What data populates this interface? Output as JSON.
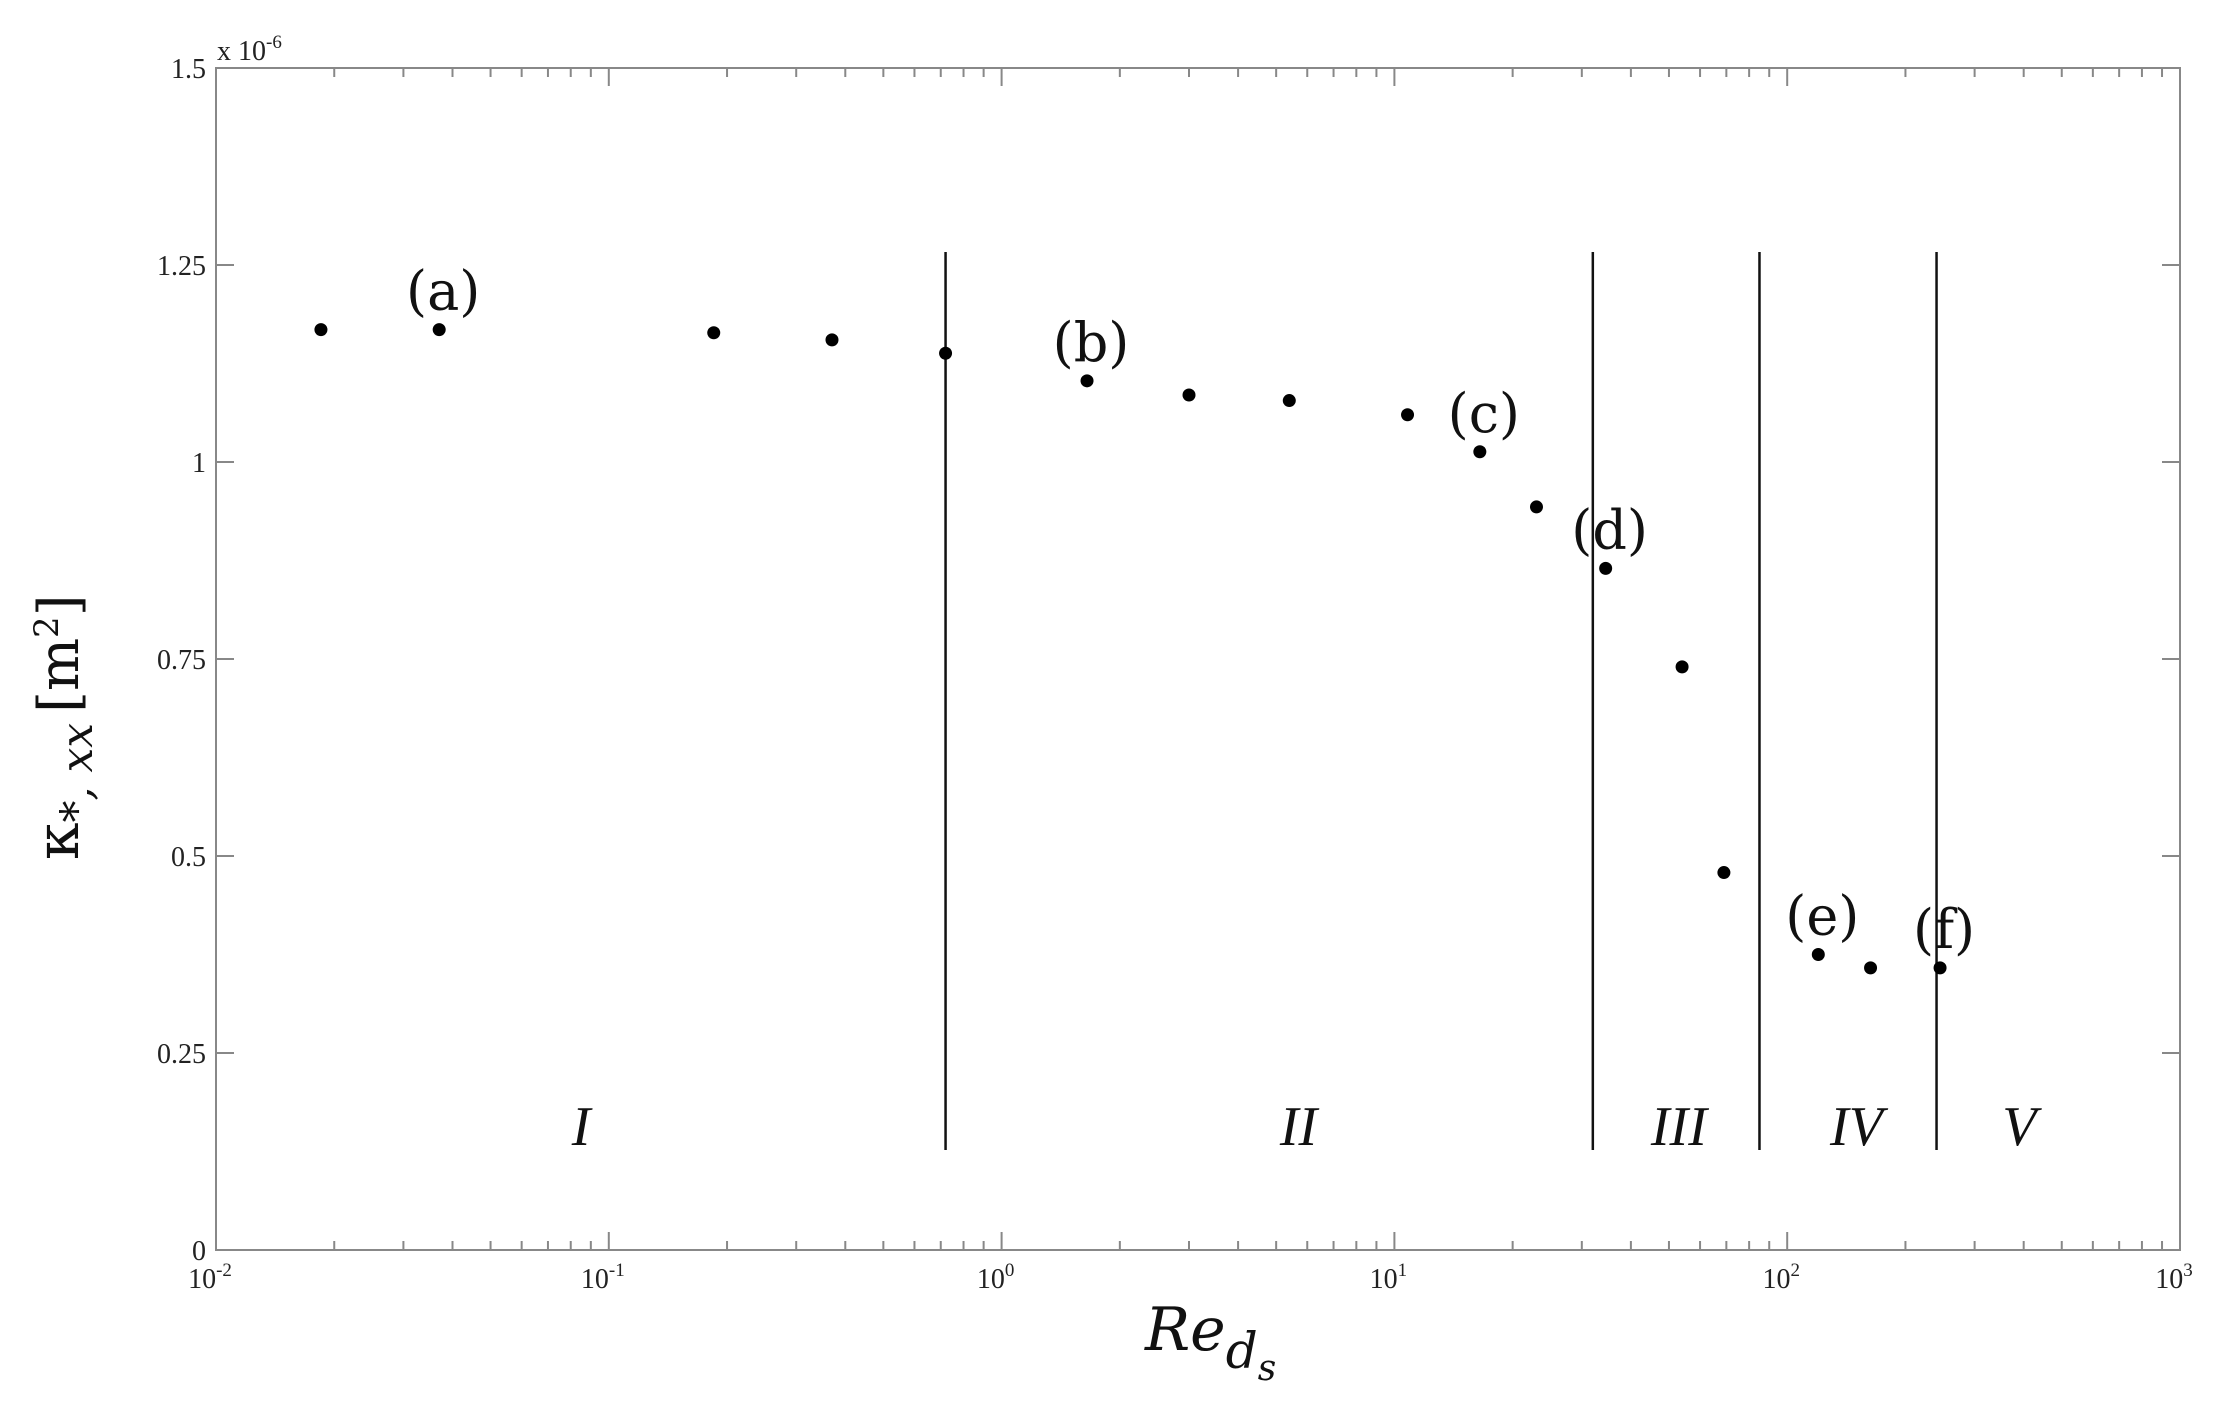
{
  "chart_data": {
    "type": "scatter",
    "title": "",
    "x_scale": "log",
    "xlim": [
      0.01,
      1000
    ],
    "ylim": [
      0,
      1.5
    ],
    "y_multiplier": "x 10",
    "y_multiplier_exp": "-6",
    "grid": false,
    "xlabel": {
      "base": "Re",
      "sub": "d",
      "subsub": "s"
    },
    "ylabel": {
      "symbol": "κ",
      "sub": "*, xx",
      "unit": "[m",
      "unit_exp": "2",
      "unit_close": "]"
    },
    "x_ticks": [
      {
        "value": 0.01,
        "base": "10",
        "exp": "-2"
      },
      {
        "value": 0.1,
        "base": "10",
        "exp": "-1"
      },
      {
        "value": 1,
        "base": "10",
        "exp": "0"
      },
      {
        "value": 10,
        "base": "10",
        "exp": "1"
      },
      {
        "value": 100,
        "base": "10",
        "exp": "2"
      },
      {
        "value": 1000,
        "base": "10",
        "exp": "3"
      }
    ],
    "y_ticks": [
      {
        "value": 0,
        "label": "0"
      },
      {
        "value": 0.25,
        "label": "0.25"
      },
      {
        "value": 0.5,
        "label": "0.5"
      },
      {
        "value": 0.75,
        "label": "0.75"
      },
      {
        "value": 1,
        "label": "1"
      },
      {
        "value": 1.25,
        "label": "1.25"
      },
      {
        "value": 1.5,
        "label": "1.5"
      }
    ],
    "points": [
      {
        "x": 0.0185,
        "y": 1.168
      },
      {
        "x": 0.037,
        "y": 1.168
      },
      {
        "x": 0.185,
        "y": 1.164
      },
      {
        "x": 0.37,
        "y": 1.155
      },
      {
        "x": 0.72,
        "y": 1.138
      },
      {
        "x": 1.65,
        "y": 1.103
      },
      {
        "x": 3.0,
        "y": 1.085
      },
      {
        "x": 5.4,
        "y": 1.078
      },
      {
        "x": 10.8,
        "y": 1.06
      },
      {
        "x": 16.5,
        "y": 1.013
      },
      {
        "x": 23,
        "y": 0.943
      },
      {
        "x": 34.5,
        "y": 0.865
      },
      {
        "x": 54,
        "y": 0.74
      },
      {
        "x": 69,
        "y": 0.479
      },
      {
        "x": 120,
        "y": 0.375
      },
      {
        "x": 163,
        "y": 0.358
      },
      {
        "x": 245,
        "y": 0.358
      }
    ],
    "annotations": [
      {
        "text": "(a)",
        "x": 0.037,
        "y": 1.168
      },
      {
        "text": "(b)",
        "x": 1.65,
        "y": 1.103
      },
      {
        "text": "(c)",
        "x": 16.5,
        "y": 1.013
      },
      {
        "text": "(d)",
        "x": 34.5,
        "y": 0.865
      },
      {
        "text": "(e)",
        "x": 120,
        "y": 0.375
      },
      {
        "text": "(f)",
        "x": 245,
        "y": 0.358
      }
    ],
    "region_boundaries": [
      0.72,
      32,
      85,
      240
    ],
    "regions": [
      {
        "label": "I",
        "x": 0.085
      },
      {
        "label": "II",
        "x": 5.7
      },
      {
        "label": "III",
        "x": 53
      },
      {
        "label": "IV",
        "x": 150
      },
      {
        "label": "V",
        "x": 390
      }
    ],
    "colors": {
      "points": "#000000",
      "axes": "#888888",
      "lines": "#111111"
    }
  }
}
